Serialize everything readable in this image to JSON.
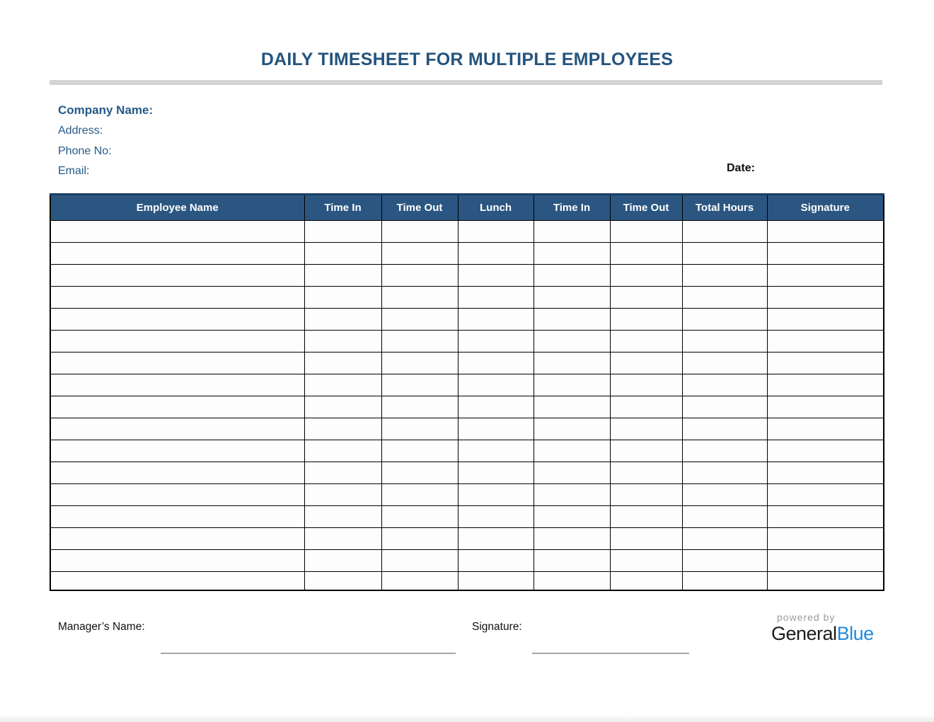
{
  "page": {
    "title": "DAILY TIMESHEET FOR MULTIPLE EMPLOYEES"
  },
  "company": {
    "name_label": "Company Name:",
    "address_label": "Address:",
    "phone_label": "Phone No:",
    "email_label": "Email:",
    "date_label": "Date:"
  },
  "table": {
    "columns": [
      {
        "key": "employee-name",
        "label": "Employee Name"
      },
      {
        "key": "time-in-1",
        "label": "Time In"
      },
      {
        "key": "time-out-1",
        "label": "Time Out"
      },
      {
        "key": "lunch",
        "label": "Lunch"
      },
      {
        "key": "time-in-2",
        "label": "Time In"
      },
      {
        "key": "time-out-2",
        "label": "Time Out"
      },
      {
        "key": "total-hours",
        "label": "Total Hours"
      },
      {
        "key": "signature",
        "label": "Signature"
      }
    ],
    "row_count": 17,
    "cell_value": ""
  },
  "footer": {
    "manager_label": "Manager’s Name:",
    "signature_label": "Signature:",
    "manager_value": "",
    "signature_value": "",
    "logo": {
      "powered_by": "powered by",
      "brand_primary": "General",
      "brand_accent": "Blue"
    }
  },
  "colors": {
    "title_blue": "#25547E",
    "label_blue": "#265A88",
    "header_blue": "#2B5681",
    "brand_accent_blue": "#2289DB",
    "divider_gray": "#D4D4D4"
  }
}
